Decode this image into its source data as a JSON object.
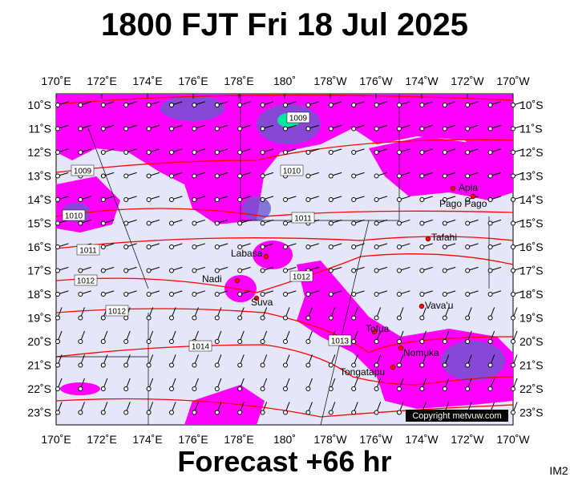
{
  "header": {
    "title": "1800 FJT Fri 18 Jul 2025"
  },
  "axes": {
    "longitudes": [
      "170˚E",
      "172˚E",
      "174˚E",
      "176˚E",
      "178˚E",
      "180˚",
      "178˚W",
      "176˚W",
      "174˚W",
      "172˚W",
      "170˚W"
    ],
    "latitudes": [
      "10˚S",
      "11˚S",
      "12˚S",
      "13˚S",
      "14˚S",
      "15˚S",
      "16˚S",
      "17˚S",
      "18˚S",
      "19˚S",
      "20˚S",
      "21˚S",
      "22˚S",
      "23˚S"
    ]
  },
  "places": [
    {
      "label": "Apia"
    },
    {
      "label": "Pago Pago"
    },
    {
      "label": "Tafahi"
    },
    {
      "label": "Labasa"
    },
    {
      "label": "Nadi"
    },
    {
      "label": "Suva"
    },
    {
      "label": "Vava'u"
    },
    {
      "label": "Tofua"
    },
    {
      "label": "Nomuka"
    },
    {
      "label": "Tongatapu"
    }
  ],
  "isobars": [
    {
      "label": "1009"
    },
    {
      "label": "1009"
    },
    {
      "label": "1010"
    },
    {
      "label": "1010"
    },
    {
      "label": "1011"
    },
    {
      "label": "1011"
    },
    {
      "label": "1012"
    },
    {
      "label": "1012"
    },
    {
      "label": "1012"
    },
    {
      "label": "1013"
    },
    {
      "label": "1014"
    }
  ],
  "copyright": "Copyright metvuw.com",
  "footer": {
    "forecast": "Forecast +66 hr",
    "code": "IM2"
  }
}
